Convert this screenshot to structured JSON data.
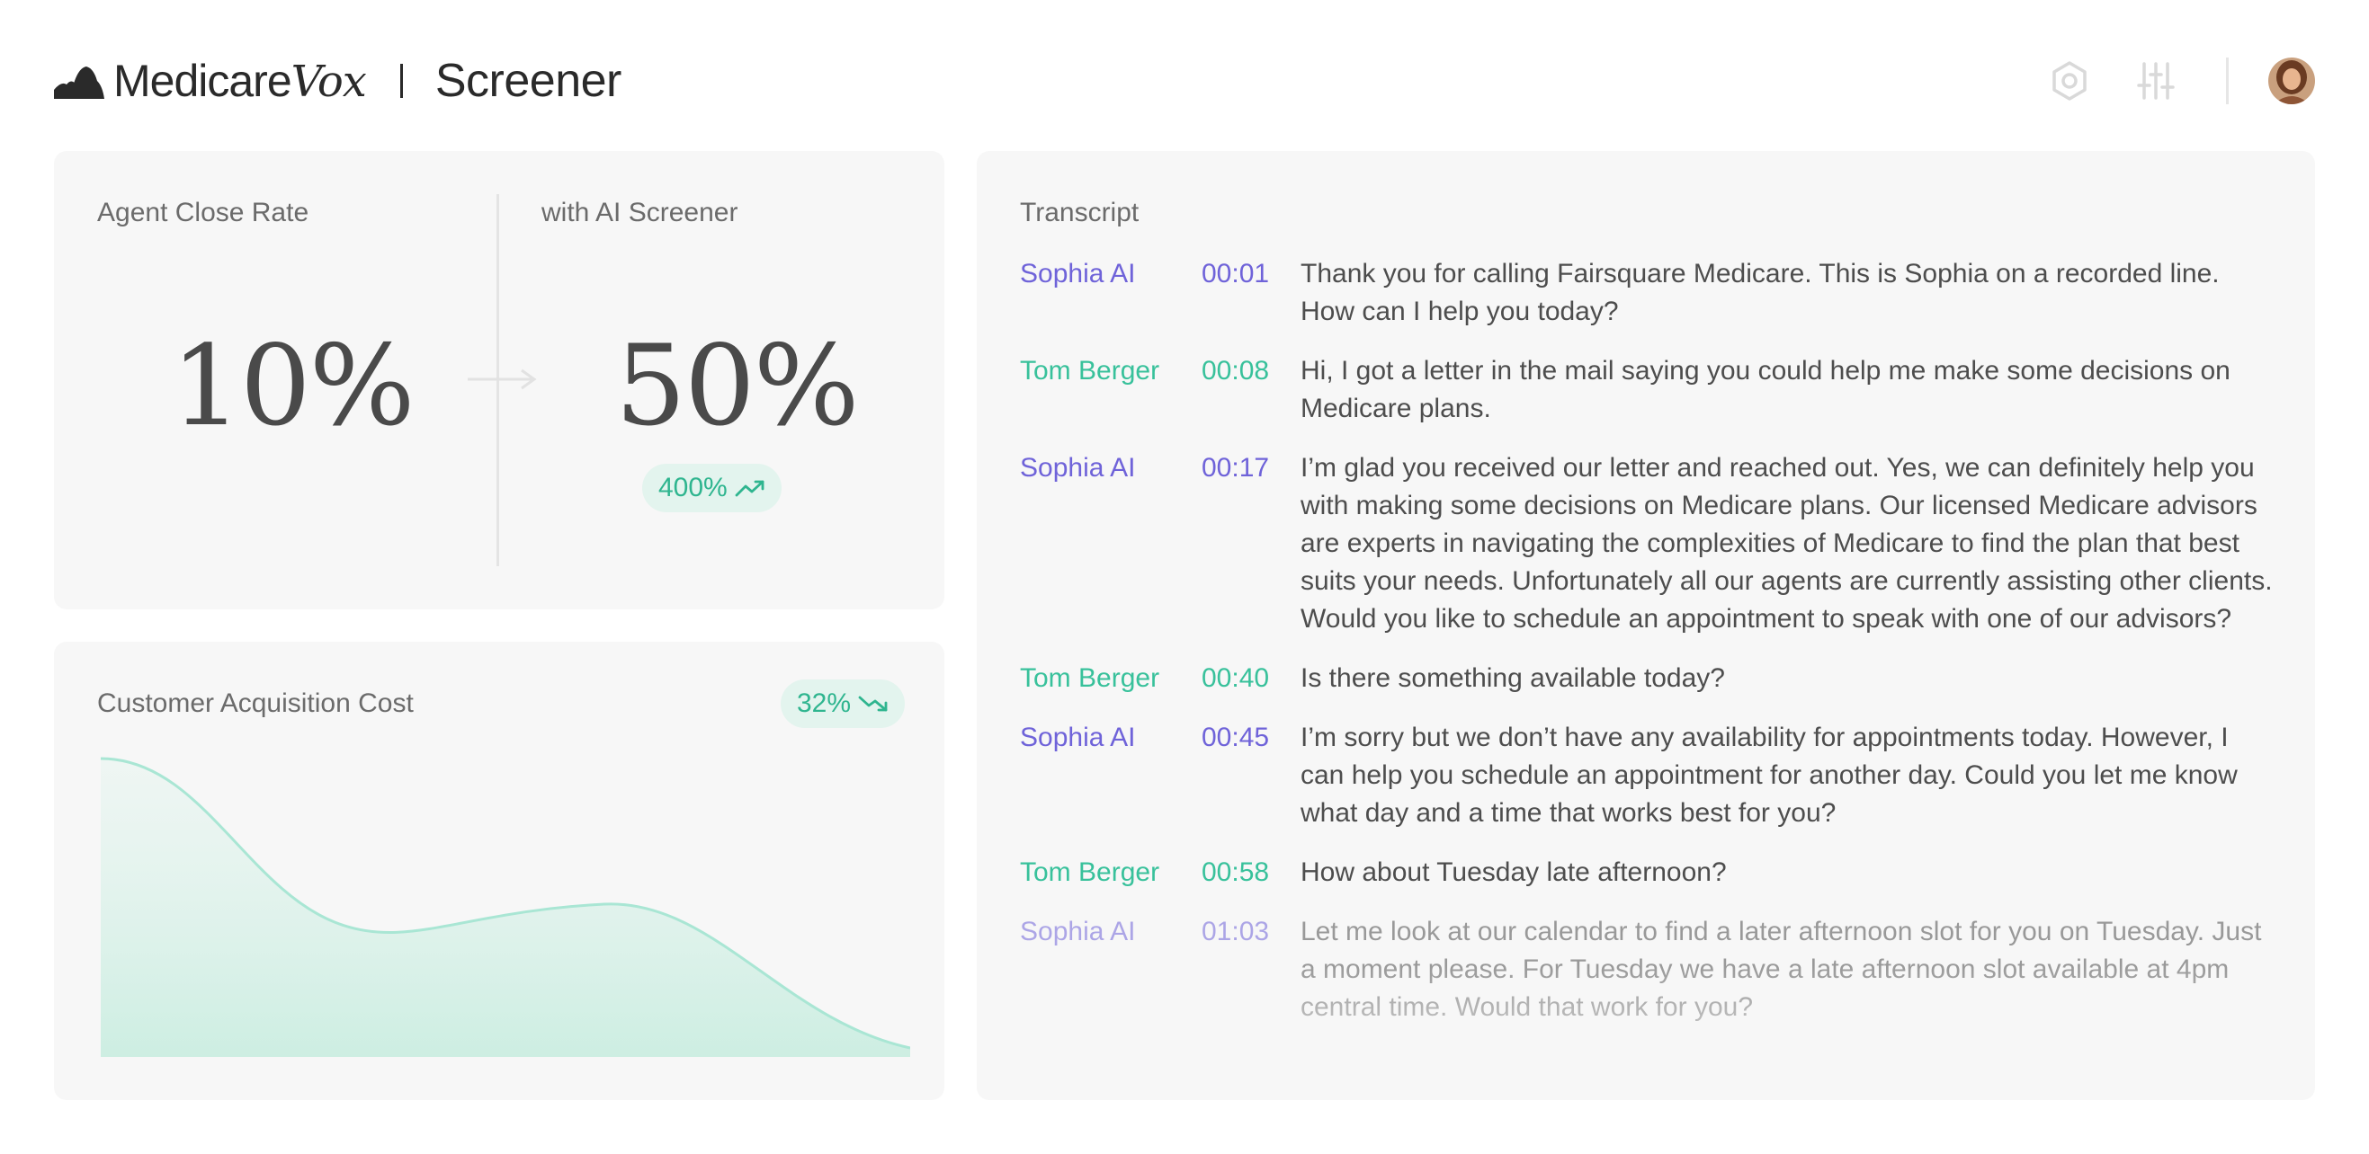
{
  "header": {
    "brand_primary": "Medicare",
    "brand_secondary": "Vox",
    "product": "Screener",
    "icons": [
      "hexagon-settings-icon",
      "sliders-icon"
    ],
    "avatar": "user-avatar"
  },
  "close_rate": {
    "label_before": "Agent Close Rate",
    "label_after": "with AI Screener",
    "value_before": "10%",
    "value_after": "50%",
    "lift": "400%",
    "lift_direction": "up"
  },
  "cac": {
    "label": "Customer Acquisition Cost",
    "change": "32%",
    "change_direction": "down",
    "curve_color": "#a9e6d4"
  },
  "transcript": {
    "label": "Transcript",
    "messages": [
      {
        "speaker": "Sophia AI",
        "role": "ai",
        "time": "00:01",
        "text": "Thank you for calling Fairsquare Medicare. This is Sophia on a recorded line. How can I help you today?"
      },
      {
        "speaker": "Tom Berger",
        "role": "human",
        "time": "00:08",
        "text": "Hi, I got a letter in the mail saying you could help me make some decisions on Medicare plans."
      },
      {
        "speaker": "Sophia AI",
        "role": "ai",
        "time": "00:17",
        "text": "I’m glad you received our letter and reached out. Yes, we can definitely help you with making some decisions on Medicare plans. Our licensed Medicare advisors are experts in navigating the complexities of Medicare to find the plan that best suits your needs. Unfortunately all our agents are currently assisting other clients. Would you like to schedule an appointment to speak with one of our advisors?"
      },
      {
        "speaker": "Tom Berger",
        "role": "human",
        "time": "00:40",
        "text": "Is there something available today?"
      },
      {
        "speaker": "Sophia AI",
        "role": "ai",
        "time": "00:45",
        "text": "I’m sorry but we don’t have any availability for appointments today. However, I can help you schedule an appointment for another day. Could you let me know what day and a time that works best for you?"
      },
      {
        "speaker": "Tom Berger",
        "role": "human",
        "time": "00:58",
        "text": "How about Tuesday late afternoon?"
      },
      {
        "speaker": "Sophia AI",
        "role": "ai",
        "time": "01:03",
        "text": "Let me look at our calendar to find a later afternoon slot for you on Tuesday. Just a moment please. For Tuesday we have a late afternoon slot available at 4pm central time. Would that work for you?"
      }
    ],
    "colors": {
      "ai": "#6f63d9",
      "human": "#38c19b"
    }
  }
}
